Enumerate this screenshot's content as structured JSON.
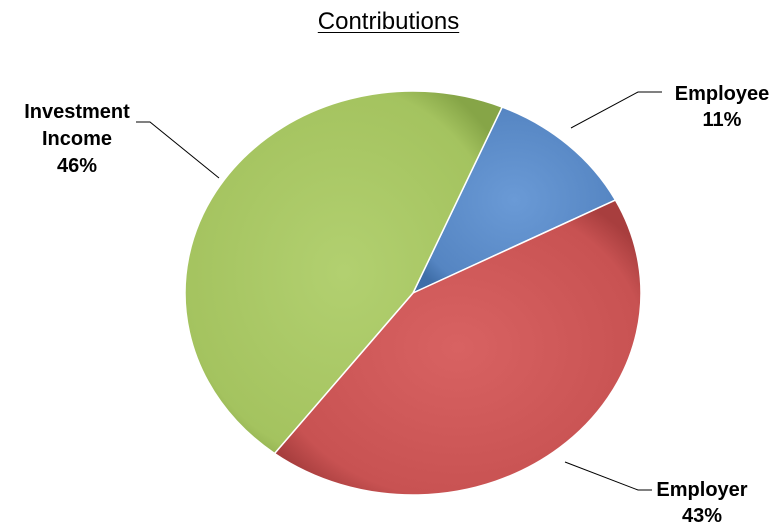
{
  "chart_data": {
    "type": "pie",
    "title": "Contributions",
    "slices": [
      {
        "name": "Employee",
        "value": 11,
        "label": "11%",
        "color": "#5b8cc8"
      },
      {
        "name": "Employer",
        "value": 43,
        "label": "43%",
        "color": "#cb5555"
      },
      {
        "name": "Investment Income",
        "name_lines": [
          "Investment",
          "Income"
        ],
        "value": 46,
        "label": "46%",
        "color": "#a8c662"
      }
    ]
  }
}
